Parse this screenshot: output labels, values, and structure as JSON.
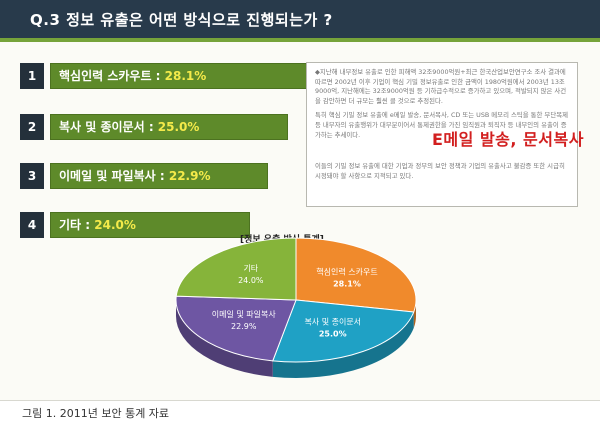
{
  "slide": {
    "title": "Q.3  정보 유출은 어떤 방식으로 진행되는가 ?",
    "items": [
      {
        "num": "1",
        "label": "핵심인력 스카우트 : ",
        "value": "28.1%"
      },
      {
        "num": "2",
        "label": "복사 및 종이문서 : ",
        "value": "25.0%"
      },
      {
        "num": "3",
        "label": "이메일 및 파일복사 : ",
        "value": "22.9%"
      },
      {
        "num": "4",
        "label": "기타 : ",
        "value": "24.0%"
      }
    ],
    "textbox": {
      "para1": "◆지난해 내부정보 유출로 인한 피해액 32조9000억원+최근 한국산업보안연구소 조사 결과에 따르면 2002년 이후 기업이 핵심 기밀 정보유출로 인한 금액이 1980억원에서 2003년 13조9000억, 지난해에는 32조9000억원 등 기하급수적으로 증가하고 있으며, 적발되지 않은 사건을 감안하면 더 규모는 훨씬 클 것으로 추정된다.",
      "para2": "특히 핵심 기밀 정보 유출에 e메일 발송, 문서복사, CD 또는 USB 메모리 스틱을 통한 무단복제 등 내부자의 유출행위가 대부분이어서 통제권한을 가진 임직원과 퇴직자 등 내부인의 유출이 증가하는 추세이다.",
      "para3": "이들의 기밀 정보 유출에 대한 기업과 정부의 보안 정책과 기업의 유출사고 불감증 또한 시급히 시정돼야 할 사항으로 지적되고 있다.",
      "callout": "E메일 발송, 문서복사"
    }
  },
  "chart_data": {
    "type": "pie",
    "title": "[정보 유출 방식 통계]",
    "labels": [
      "핵심인력 스카우트",
      "복사 및 종이문서",
      "이메일 및 파일복사",
      "기타"
    ],
    "values": [
      28.1,
      25.0,
      22.9,
      24.0
    ],
    "value_labels": [
      "28.1%",
      "25.0%",
      "22.9%",
      "24.0%"
    ],
    "colors": [
      "#f08a2c",
      "#1fa1c5",
      "#6e56a3",
      "#86b43a"
    ]
  },
  "caption": "그림 1. 2011년 보안 통계 자료"
}
